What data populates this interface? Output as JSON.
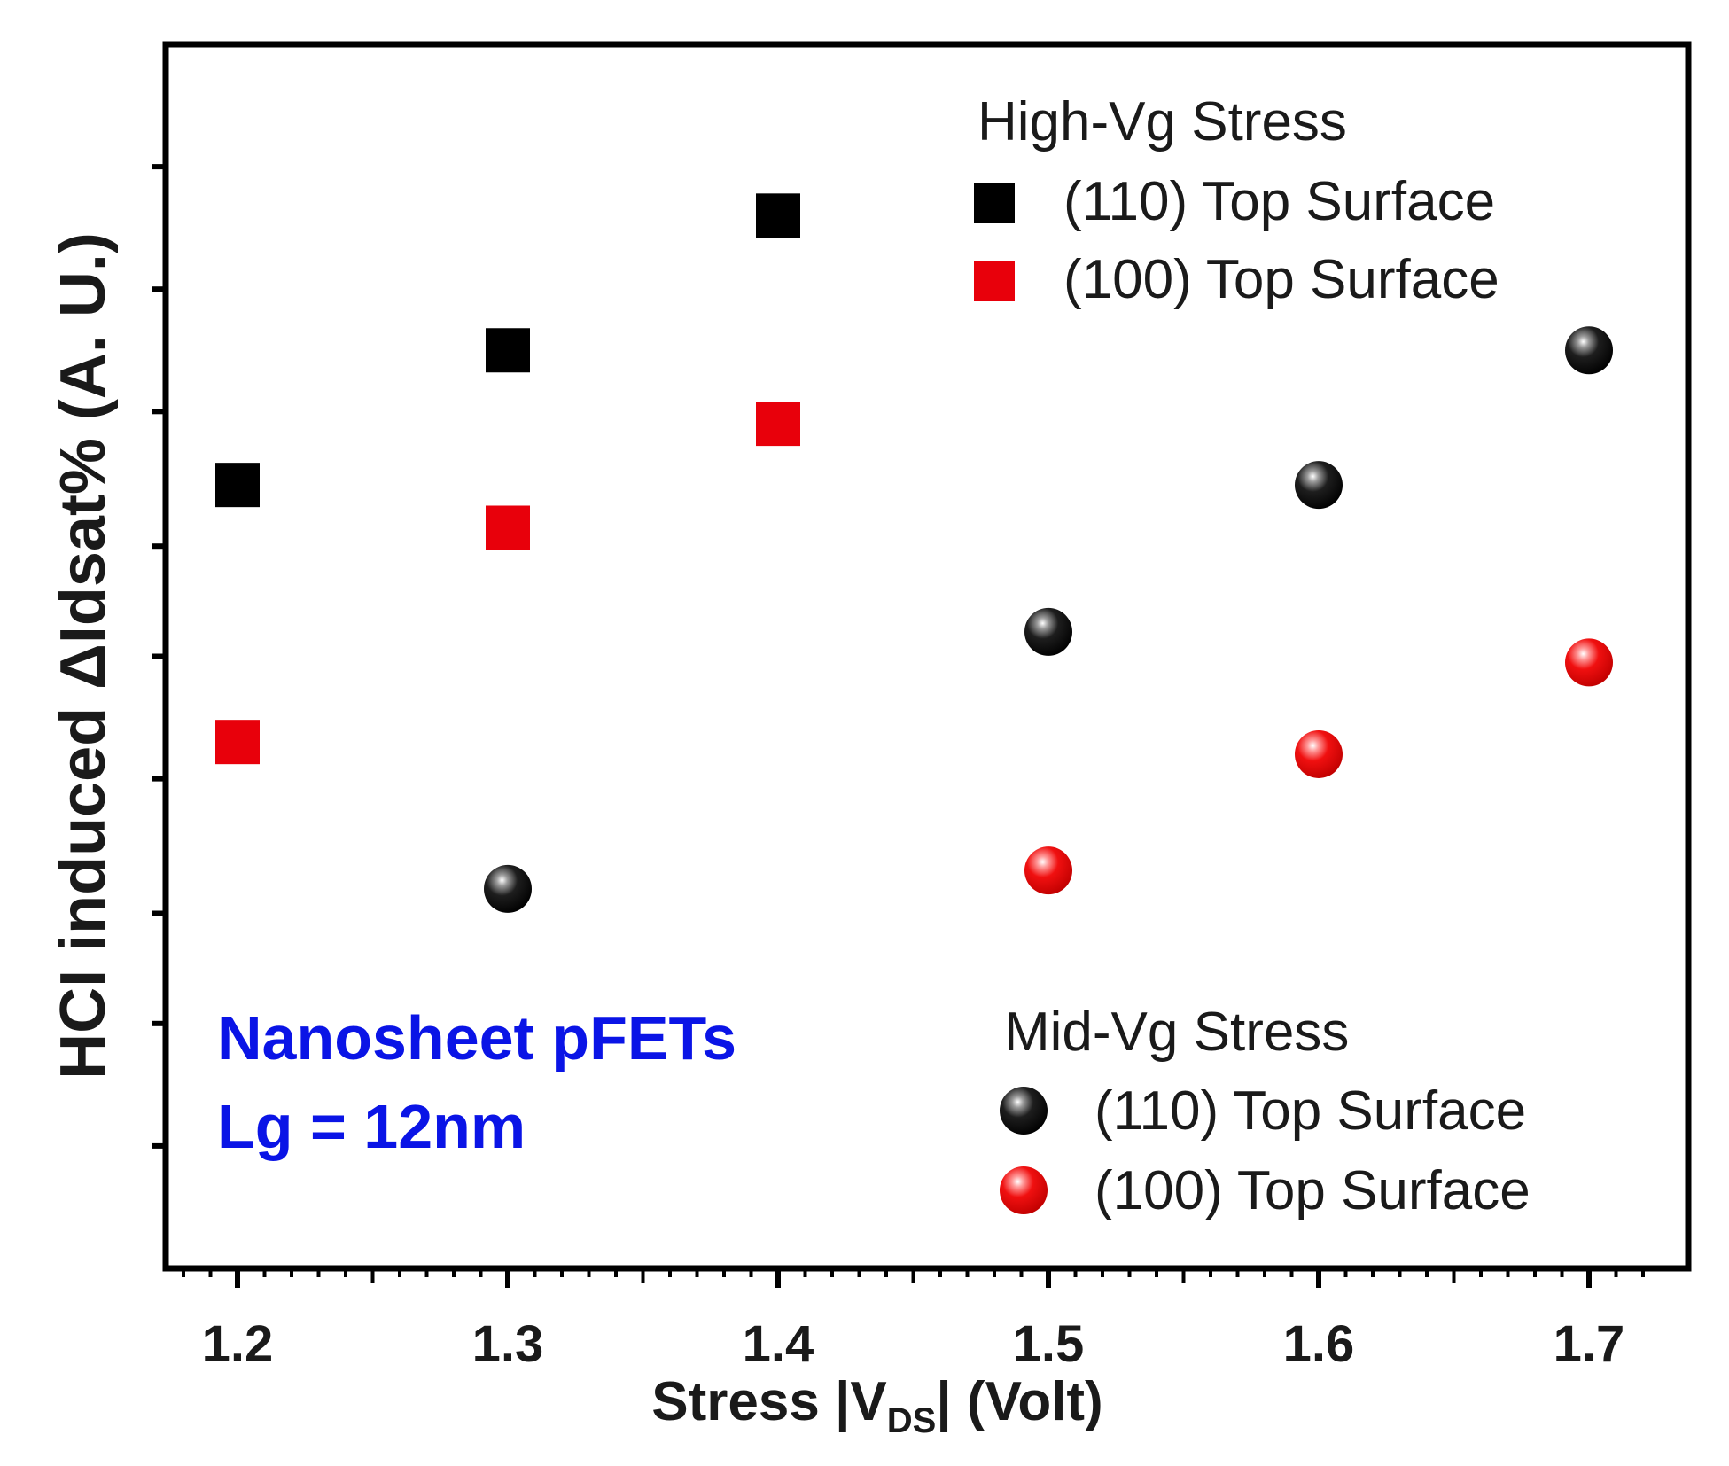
{
  "chart_data": {
    "type": "scatter",
    "title": "",
    "xlabel": {
      "prefix": "Stress |V",
      "sub": "DS",
      "suffix": "| (Volt)"
    },
    "ylabel": "HCI induced ΔIdsat% (A. U.)",
    "xlim": [
      1.175,
      1.72
    ],
    "ylim": [
      0,
      10
    ],
    "xticks": [
      1.2,
      1.3,
      1.4,
      1.5,
      1.6,
      1.7
    ],
    "xtick_labels": [
      "1.2",
      "1.3",
      "1.4",
      "1.5",
      "1.6",
      "1.7"
    ],
    "y_minor_ticks": [
      1,
      2,
      2.9,
      4,
      5,
      5.9,
      7,
      8,
      9
    ],
    "grid": false,
    "series": [
      {
        "name": "(110) Top Surface",
        "group": "High-Vg Stress",
        "marker": "square",
        "color": "#000000",
        "x": [
          1.2,
          1.3,
          1.4
        ],
        "y": [
          6.4,
          7.5,
          8.6
        ]
      },
      {
        "name": "(100) Top Surface",
        "group": "High-Vg Stress",
        "marker": "square",
        "color": "#e8000b",
        "x": [
          1.2,
          1.3,
          1.4
        ],
        "y": [
          4.3,
          6.05,
          6.9
        ]
      },
      {
        "name": "(110) Top Surface",
        "group": "Mid-Vg Stress",
        "marker": "sphere",
        "color": "#000000",
        "x": [
          1.3,
          1.5,
          1.6,
          1.7
        ],
        "y": [
          3.1,
          5.2,
          6.4,
          7.5
        ]
      },
      {
        "name": "(100) Top Surface",
        "group": "Mid-Vg Stress",
        "marker": "sphere",
        "color": "#e8000b",
        "x": [
          1.5,
          1.6,
          1.7
        ],
        "y": [
          3.25,
          4.2,
          4.95
        ]
      }
    ],
    "legends": [
      {
        "title": "High-Vg Stress",
        "placement": "top-right",
        "entries": [
          {
            "label": "(110) Top Surface",
            "marker": "square",
            "color": "#000000"
          },
          {
            "label": "(100) Top Surface",
            "marker": "square",
            "color": "#e8000b"
          }
        ]
      },
      {
        "title": "Mid-Vg Stress",
        "placement": "bottom-right",
        "entries": [
          {
            "label": "(110) Top Surface",
            "marker": "sphere",
            "color": "#000000"
          },
          {
            "label": "(100) Top Surface",
            "marker": "sphere",
            "color": "#e8000b"
          }
        ]
      }
    ],
    "annotations": [
      {
        "text": "Nanosheet pFETs",
        "color": "#0a14e6",
        "placement": "bottom-left"
      },
      {
        "text": "Lg = 12nm",
        "color": "#0a14e6",
        "placement": "bottom-left"
      }
    ]
  }
}
